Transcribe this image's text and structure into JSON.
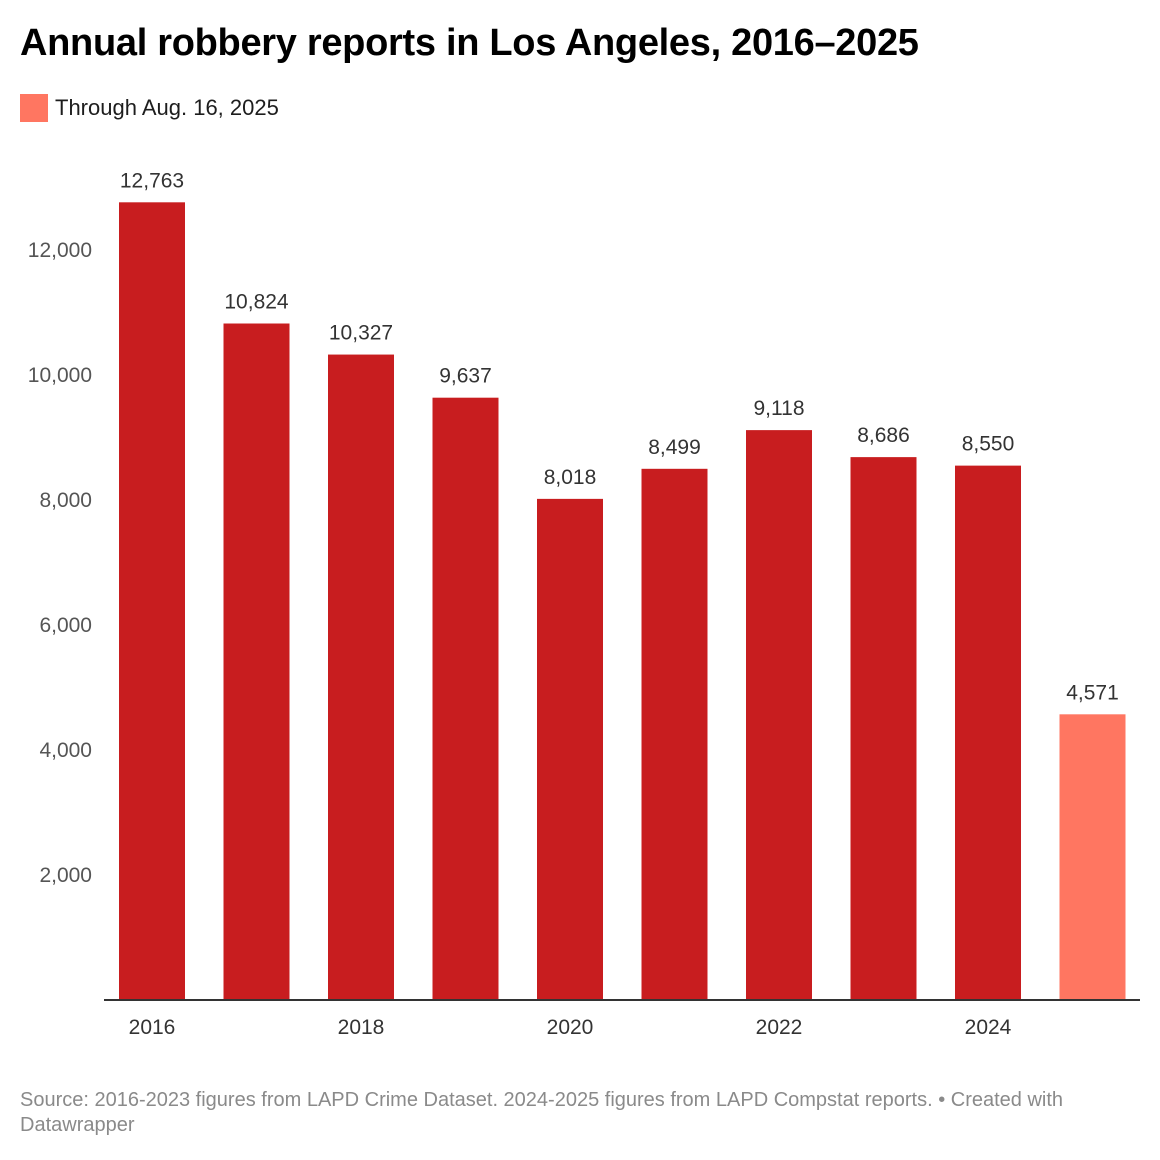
{
  "title": "Annual robbery reports in Los Angeles, 2016–2025",
  "legend": {
    "label": "Through Aug. 16, 2025",
    "color": "#ff7661"
  },
  "colors": {
    "bar": "#c81d1f",
    "highlight": "#ff7661",
    "axis": "#333333",
    "tick_text": "#555555",
    "value_text": "#333333"
  },
  "chart_data": {
    "type": "bar",
    "title": "Annual robbery reports in Los Angeles, 2016–2025",
    "xlabel": "",
    "ylabel": "",
    "categories": [
      "2016",
      "2017",
      "2018",
      "2019",
      "2020",
      "2021",
      "2022",
      "2023",
      "2024",
      "2025"
    ],
    "values": [
      12763,
      10824,
      10327,
      9637,
      8018,
      8499,
      9118,
      8686,
      8550,
      4571
    ],
    "value_labels": [
      "12,763",
      "10,824",
      "10,327",
      "9,637",
      "8,018",
      "8,499",
      "9,118",
      "8,686",
      "8,550",
      "4,571"
    ],
    "highlight_categories": [
      "2025"
    ],
    "x_tick_labels": [
      "2016",
      "2018",
      "2020",
      "2022",
      "2024"
    ],
    "y_ticks": [
      2000,
      4000,
      6000,
      8000,
      10000,
      12000
    ],
    "y_tick_labels": [
      "2,000",
      "4,000",
      "6,000",
      "8,000",
      "10,000",
      "12,000"
    ],
    "ylim": [
      0,
      13000
    ],
    "grid": false,
    "legend_position": "top-left"
  },
  "footer": {
    "text": "Source: 2016-2023 figures from LAPD Crime Dataset. 2024-2025 figures from LAPD Compstat reports. • Created with Datawrapper"
  }
}
